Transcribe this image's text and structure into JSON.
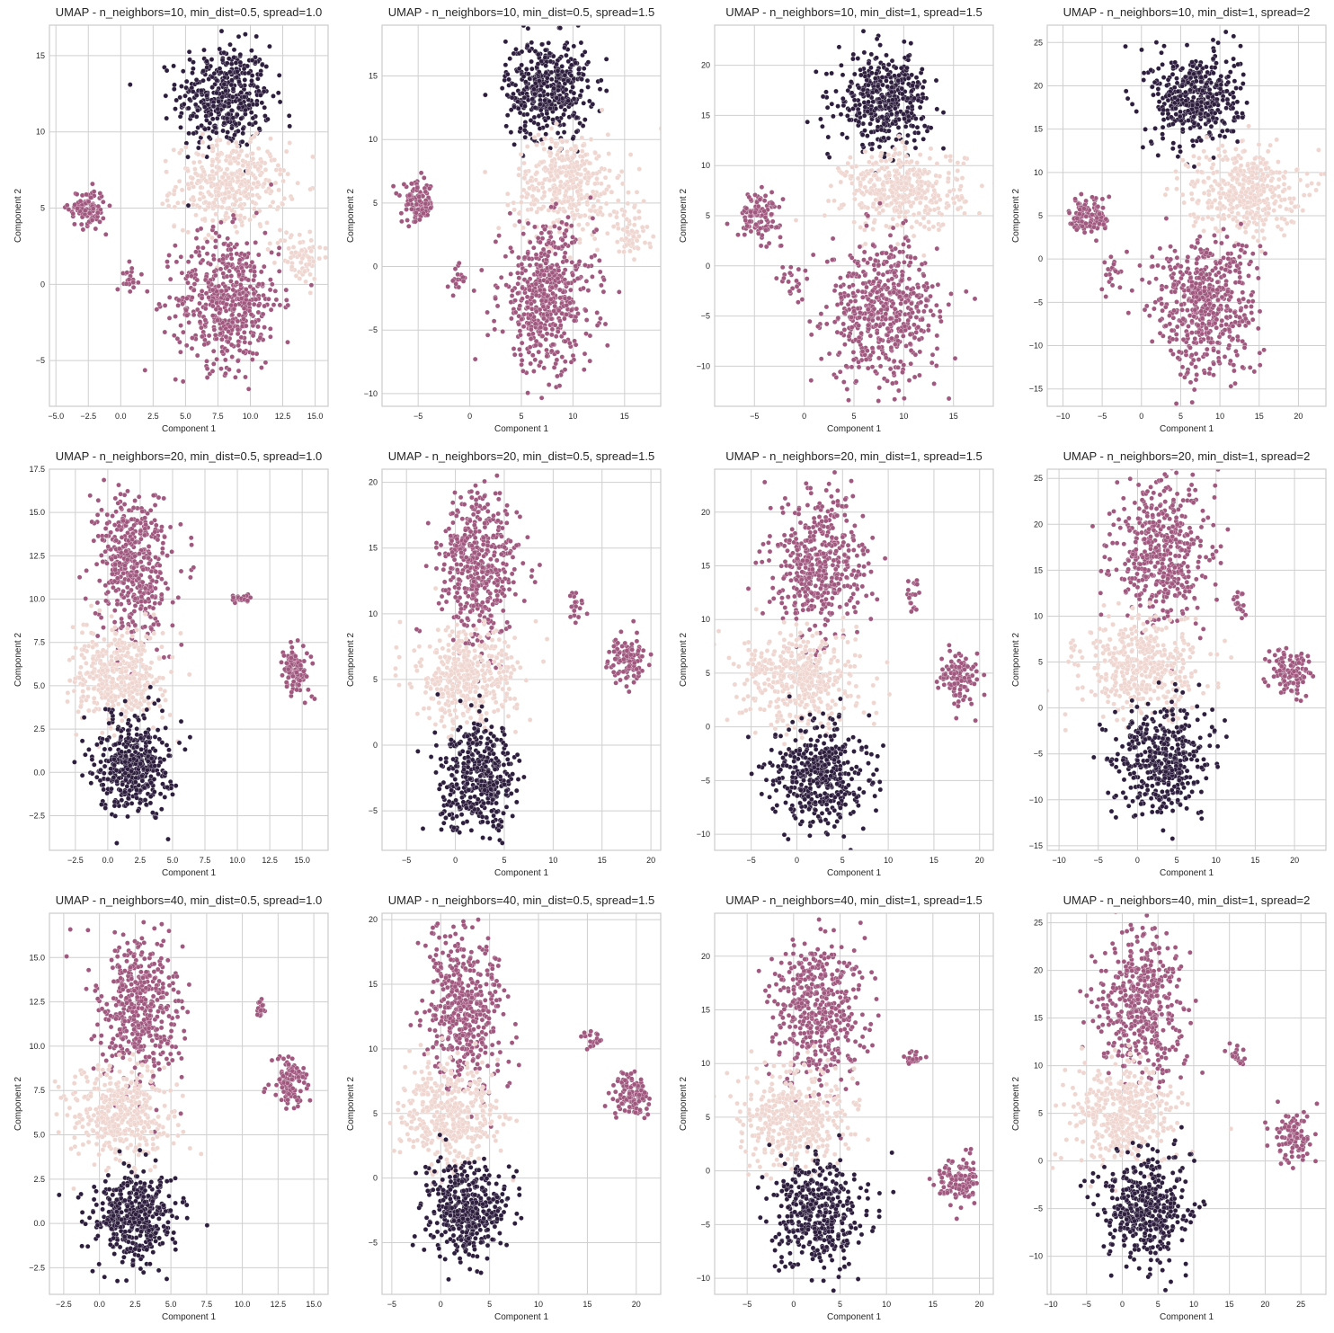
{
  "figure": {
    "title": ""
  },
  "palette": {
    "cluster_dark": "#2d1e3e",
    "cluster_mid": "#a0587f",
    "cluster_light": "#efd6d0",
    "grid": "#cfcfcf",
    "frame": "#cccccc"
  },
  "chart_data": [
    {
      "type": "scatter",
      "title": "UMAP - n_neighbors=10, min_dist=0.5, spread=1.0",
      "xlabel": "Component 1",
      "ylabel": "Component 2",
      "xlim": [
        -5.5,
        16
      ],
      "ylim": [
        -8,
        17
      ],
      "xticks": [
        -5,
        -2.5,
        0,
        2.5,
        5,
        7.5,
        10,
        12.5,
        15
      ],
      "xtick_labels": [
        "−5.0",
        "−2.5",
        "0.0",
        "2.5",
        "5.0",
        "7.5",
        "10.0",
        "12.5",
        "15.0"
      ],
      "yticks": [
        -5,
        0,
        5,
        10,
        15
      ],
      "ytick_labels": [
        "−5",
        "0",
        "5",
        "10",
        "15"
      ],
      "grid": true,
      "legend": "none",
      "clusters": [
        {
          "color": "dark",
          "cx": 8.0,
          "cy": 12.3,
          "sx": 1.8,
          "sy": 1.7,
          "n": 420
        },
        {
          "color": "light",
          "cx": 8.5,
          "cy": 6.5,
          "sx": 2.1,
          "sy": 1.4,
          "n": 380
        },
        {
          "color": "light",
          "cx": 13.8,
          "cy": 1.8,
          "sx": 0.9,
          "sy": 0.9,
          "n": 70
        },
        {
          "color": "mid",
          "cx": 8.3,
          "cy": -1.0,
          "sx": 2.0,
          "sy": 2.2,
          "n": 520
        },
        {
          "color": "mid",
          "cx": -2.6,
          "cy": 5.0,
          "sx": 0.7,
          "sy": 0.6,
          "n": 110
        },
        {
          "color": "mid",
          "cx": 0.8,
          "cy": 0.5,
          "sx": 0.35,
          "sy": 0.45,
          "n": 20
        }
      ]
    },
    {
      "type": "scatter",
      "title": "UMAP - n_neighbors=10, min_dist=0.5, spread=1.5",
      "xlabel": "Component 1",
      "ylabel": "Component 2",
      "xlim": [
        -8.5,
        18.5
      ],
      "ylim": [
        -11,
        19
      ],
      "xticks": [
        -5,
        0,
        5,
        10,
        15
      ],
      "xtick_labels": [
        "−5",
        "0",
        "5",
        "10",
        "15"
      ],
      "yticks": [
        -10,
        -5,
        0,
        5,
        10,
        15
      ],
      "ytick_labels": [
        "−10",
        "−5",
        "0",
        "5",
        "10",
        "15"
      ],
      "grid": true,
      "legend": "none",
      "clusters": [
        {
          "color": "dark",
          "cx": 7.5,
          "cy": 14.0,
          "sx": 2.0,
          "sy": 2.0,
          "n": 420
        },
        {
          "color": "light",
          "cx": 9.5,
          "cy": 6.5,
          "sx": 2.5,
          "sy": 2.0,
          "n": 380
        },
        {
          "color": "light",
          "cx": 15.5,
          "cy": 2.5,
          "sx": 1.0,
          "sy": 1.2,
          "n": 60
        },
        {
          "color": "mid",
          "cx": 7.5,
          "cy": -2.5,
          "sx": 2.3,
          "sy": 2.8,
          "n": 520
        },
        {
          "color": "mid",
          "cx": -5.0,
          "cy": 5.0,
          "sx": 0.8,
          "sy": 0.8,
          "n": 110
        },
        {
          "color": "mid",
          "cx": -1.2,
          "cy": -1.0,
          "sx": 0.4,
          "sy": 0.6,
          "n": 20
        }
      ]
    },
    {
      "type": "scatter",
      "title": "UMAP - n_neighbors=10, min_dist=1, spread=1.5",
      "xlabel": "Component 1",
      "ylabel": "Component 2",
      "xlim": [
        -9,
        19
      ],
      "ylim": [
        -14,
        24
      ],
      "xticks": [
        -5,
        0,
        5,
        10,
        15
      ],
      "xtick_labels": [
        "−5",
        "0",
        "5",
        "10",
        "15"
      ],
      "yticks": [
        -10,
        -5,
        0,
        5,
        10,
        15,
        20
      ],
      "ytick_labels": [
        "−10",
        "−5",
        "0",
        "5",
        "10",
        "15",
        "20"
      ],
      "grid": true,
      "legend": "none",
      "clusters": [
        {
          "color": "dark",
          "cx": 8.0,
          "cy": 16.5,
          "sx": 2.3,
          "sy": 2.3,
          "n": 420
        },
        {
          "color": "light",
          "cx": 10.0,
          "cy": 7.5,
          "sx": 3.0,
          "sy": 2.0,
          "n": 400
        },
        {
          "color": "mid",
          "cx": 8.0,
          "cy": -4.5,
          "sx": 2.8,
          "sy": 3.5,
          "n": 540
        },
        {
          "color": "mid",
          "cx": -4.5,
          "cy": 5.0,
          "sx": 1.1,
          "sy": 1.1,
          "n": 110
        },
        {
          "color": "mid",
          "cx": -1.2,
          "cy": -1.5,
          "sx": 0.6,
          "sy": 0.9,
          "n": 20
        }
      ]
    },
    {
      "type": "scatter",
      "title": "UMAP - n_neighbors=10, min_dist=1, spread=2",
      "xlabel": "Component 1",
      "ylabel": "Component 2",
      "xlim": [
        -12,
        23.5
      ],
      "ylim": [
        -17,
        27
      ],
      "xticks": [
        -10,
        -5,
        0,
        5,
        10,
        15,
        20
      ],
      "xtick_labels": [
        "−10",
        "−5",
        "0",
        "5",
        "10",
        "15",
        "20"
      ],
      "yticks": [
        -15,
        -10,
        -5,
        0,
        5,
        10,
        15,
        20,
        25
      ],
      "ytick_labels": [
        "−15",
        "−10",
        "−5",
        "0",
        "5",
        "10",
        "15",
        "20",
        "25"
      ],
      "grid": true,
      "legend": "none",
      "clusters": [
        {
          "color": "dark",
          "cx": 7.0,
          "cy": 18.5,
          "sx": 2.8,
          "sy": 2.8,
          "n": 420
        },
        {
          "color": "light",
          "cx": 13.0,
          "cy": 8.0,
          "sx": 3.5,
          "sy": 2.5,
          "n": 400
        },
        {
          "color": "mid",
          "cx": 8.0,
          "cy": -5.5,
          "sx": 3.3,
          "sy": 4.0,
          "n": 540
        },
        {
          "color": "mid",
          "cx": -6.5,
          "cy": 5.0,
          "sx": 1.3,
          "sy": 1.3,
          "n": 110
        },
        {
          "color": "mid",
          "cx": -3.5,
          "cy": -1.5,
          "sx": 0.7,
          "sy": 1.1,
          "n": 20
        }
      ]
    },
    {
      "type": "scatter",
      "title": "UMAP - n_neighbors=20, min_dist=0.5, spread=1.0",
      "xlabel": "Component 1",
      "ylabel": "Component 2",
      "xlim": [
        -4.5,
        17
      ],
      "ylim": [
        -4.5,
        17.5
      ],
      "xticks": [
        -2.5,
        0,
        2.5,
        5,
        7.5,
        10,
        12.5,
        15
      ],
      "xtick_labels": [
        "−2.5",
        "0.0",
        "2.5",
        "5.0",
        "7.5",
        "10.0",
        "12.5",
        "15.0"
      ],
      "yticks": [
        -2.5,
        0,
        2.5,
        5,
        7.5,
        10,
        12.5,
        15,
        17.5
      ],
      "ytick_labels": [
        "−2.5",
        "0.0",
        "2.5",
        "5.0",
        "7.5",
        "10.0",
        "12.5",
        "15.0",
        "17.5"
      ],
      "grid": true,
      "legend": "none",
      "clusters": [
        {
          "color": "mid",
          "cx": 2.0,
          "cy": 12.0,
          "sx": 1.4,
          "sy": 2.2,
          "n": 460
        },
        {
          "color": "light",
          "cx": 0.8,
          "cy": 5.5,
          "sx": 1.7,
          "sy": 1.3,
          "n": 420
        },
        {
          "color": "dark",
          "cx": 2.0,
          "cy": 0.5,
          "sx": 1.4,
          "sy": 1.4,
          "n": 420
        },
        {
          "color": "mid",
          "cx": 14.5,
          "cy": 6.0,
          "sx": 0.6,
          "sy": 0.7,
          "n": 110
        },
        {
          "color": "mid",
          "cx": 10.2,
          "cy": 10.0,
          "sx": 0.4,
          "sy": 0.2,
          "n": 18
        }
      ]
    },
    {
      "type": "scatter",
      "title": "UMAP - n_neighbors=20, min_dist=0.5, spread=1.5",
      "xlabel": "Component 1",
      "ylabel": "Component 2",
      "xlim": [
        -7.5,
        21
      ],
      "ylim": [
        -8,
        21
      ],
      "xticks": [
        -5,
        0,
        5,
        10,
        15,
        20
      ],
      "xtick_labels": [
        "−5",
        "0",
        "5",
        "10",
        "15",
        "20"
      ],
      "yticks": [
        -5,
        0,
        5,
        10,
        15,
        20
      ],
      "ytick_labels": [
        "−5",
        "0",
        "5",
        "10",
        "15",
        "20"
      ],
      "grid": true,
      "legend": "none",
      "clusters": [
        {
          "color": "mid",
          "cx": 2.5,
          "cy": 13.5,
          "sx": 2.0,
          "sy": 3.0,
          "n": 460
        },
        {
          "color": "light",
          "cx": 1.0,
          "cy": 5.0,
          "sx": 2.6,
          "sy": 1.8,
          "n": 420
        },
        {
          "color": "dark",
          "cx": 2.5,
          "cy": -2.5,
          "sx": 2.0,
          "sy": 2.0,
          "n": 420
        },
        {
          "color": "mid",
          "cx": 17.5,
          "cy": 6.5,
          "sx": 0.9,
          "sy": 0.9,
          "n": 110
        },
        {
          "color": "mid",
          "cx": 12.5,
          "cy": 10.5,
          "sx": 0.4,
          "sy": 0.6,
          "n": 18
        }
      ]
    },
    {
      "type": "scatter",
      "title": "UMAP - n_neighbors=20, min_dist=1, spread=1.5",
      "xlabel": "Component 1",
      "ylabel": "Component 2",
      "xlim": [
        -9,
        21.5
      ],
      "ylim": [
        -11.5,
        24
      ],
      "xticks": [
        -5,
        0,
        5,
        10,
        15,
        20
      ],
      "xtick_labels": [
        "−5",
        "0",
        "5",
        "10",
        "15",
        "20"
      ],
      "yticks": [
        -10,
        -5,
        0,
        5,
        10,
        15,
        20
      ],
      "ytick_labels": [
        "−10",
        "−5",
        "0",
        "5",
        "10",
        "15",
        "20"
      ],
      "grid": true,
      "legend": "none",
      "clusters": [
        {
          "color": "mid",
          "cx": 2.5,
          "cy": 15.0,
          "sx": 2.5,
          "sy": 3.3,
          "n": 460
        },
        {
          "color": "light",
          "cx": 0.5,
          "cy": 4.5,
          "sx": 3.2,
          "sy": 2.2,
          "n": 420
        },
        {
          "color": "dark",
          "cx": 2.5,
          "cy": -4.5,
          "sx": 2.5,
          "sy": 2.5,
          "n": 420
        },
        {
          "color": "mid",
          "cx": 17.8,
          "cy": 4.5,
          "sx": 1.1,
          "sy": 1.3,
          "n": 110
        },
        {
          "color": "mid",
          "cx": 12.8,
          "cy": 12.0,
          "sx": 0.5,
          "sy": 1.0,
          "n": 18
        }
      ]
    },
    {
      "type": "scatter",
      "title": "UMAP - n_neighbors=20, min_dist=1, spread=2",
      "xlabel": "Component 1",
      "ylabel": "Component 2",
      "xlim": [
        -11.5,
        24
      ],
      "ylim": [
        -15.5,
        26
      ],
      "xticks": [
        -10,
        -5,
        0,
        5,
        10,
        15,
        20
      ],
      "xtick_labels": [
        "−10",
        "−5",
        "0",
        "5",
        "10",
        "15",
        "20"
      ],
      "yticks": [
        -15,
        -10,
        -5,
        0,
        5,
        10,
        15,
        20,
        25
      ],
      "ytick_labels": [
        "−15",
        "−10",
        "−5",
        "0",
        "5",
        "10",
        "15",
        "20",
        "25"
      ],
      "grid": true,
      "legend": "none",
      "clusters": [
        {
          "color": "mid",
          "cx": 3.0,
          "cy": 17.0,
          "sx": 3.0,
          "sy": 3.8,
          "n": 460
        },
        {
          "color": "light",
          "cx": 0.5,
          "cy": 4.5,
          "sx": 3.8,
          "sy": 2.5,
          "n": 420
        },
        {
          "color": "dark",
          "cx": 3.0,
          "cy": -5.5,
          "sx": 3.0,
          "sy": 3.0,
          "n": 420
        },
        {
          "color": "mid",
          "cx": 19.5,
          "cy": 4.0,
          "sx": 1.3,
          "sy": 1.3,
          "n": 110
        },
        {
          "color": "mid",
          "cx": 13.0,
          "cy": 11.5,
          "sx": 0.5,
          "sy": 0.8,
          "n": 18
        }
      ]
    },
    {
      "type": "scatter",
      "title": "UMAP - n_neighbors=40, min_dist=0.5, spread=1.0",
      "xlabel": "Component 1",
      "ylabel": "Component 2",
      "xlim": [
        -3.5,
        16
      ],
      "ylim": [
        -4,
        17.5
      ],
      "xticks": [
        -2.5,
        0,
        2.5,
        5,
        7.5,
        10,
        12.5,
        15
      ],
      "xtick_labels": [
        "−2.5",
        "0.0",
        "2.5",
        "5.0",
        "7.5",
        "10.0",
        "12.5",
        "15.0"
      ],
      "yticks": [
        -2.5,
        0,
        2.5,
        5,
        7.5,
        10,
        12.5,
        15
      ],
      "ytick_labels": [
        "−2.5",
        "0.0",
        "2.5",
        "5.0",
        "7.5",
        "10.0",
        "12.5",
        "15.0"
      ],
      "grid": true,
      "legend": "none",
      "clusters": [
        {
          "color": "mid",
          "cx": 2.8,
          "cy": 12.0,
          "sx": 1.4,
          "sy": 2.2,
          "n": 460
        },
        {
          "color": "light",
          "cx": 1.5,
          "cy": 6.0,
          "sx": 1.8,
          "sy": 1.4,
          "n": 420
        },
        {
          "color": "dark",
          "cx": 2.5,
          "cy": 0.3,
          "sx": 1.5,
          "sy": 1.3,
          "n": 420
        },
        {
          "color": "mid",
          "cx": 13.3,
          "cy": 8.0,
          "sx": 0.6,
          "sy": 0.7,
          "n": 110
        },
        {
          "color": "mid",
          "cx": 11.3,
          "cy": 12.2,
          "sx": 0.2,
          "sy": 0.4,
          "n": 18
        }
      ]
    },
    {
      "type": "scatter",
      "title": "UMAP - n_neighbors=40, min_dist=0.5, spread=1.5",
      "xlabel": "Component 1",
      "ylabel": "Component 2",
      "xlim": [
        -6,
        22.5
      ],
      "ylim": [
        -9,
        20.5
      ],
      "xticks": [
        -5,
        0,
        5,
        10,
        15,
        20
      ],
      "xtick_labels": [
        "−5",
        "0",
        "5",
        "10",
        "15",
        "20"
      ],
      "yticks": [
        -5,
        0,
        5,
        10,
        15,
        20
      ],
      "ytick_labels": [
        "−5",
        "0",
        "5",
        "10",
        "15",
        "20"
      ],
      "grid": true,
      "legend": "none",
      "clusters": [
        {
          "color": "mid",
          "cx": 2.5,
          "cy": 13.0,
          "sx": 2.0,
          "sy": 3.0,
          "n": 460
        },
        {
          "color": "light",
          "cx": 1.0,
          "cy": 5.0,
          "sx": 2.6,
          "sy": 1.9,
          "n": 420
        },
        {
          "color": "dark",
          "cx": 2.5,
          "cy": -2.5,
          "sx": 2.0,
          "sy": 1.8,
          "n": 420
        },
        {
          "color": "mid",
          "cx": 19.5,
          "cy": 6.5,
          "sx": 1.0,
          "sy": 0.9,
          "n": 110
        },
        {
          "color": "mid",
          "cx": 15.5,
          "cy": 10.5,
          "sx": 0.6,
          "sy": 0.5,
          "n": 18
        }
      ]
    },
    {
      "type": "scatter",
      "title": "UMAP - n_neighbors=40, min_dist=1, spread=1.5",
      "xlabel": "Component 1",
      "ylabel": "Component 2",
      "xlim": [
        -8.5,
        21.5
      ],
      "ylim": [
        -11.5,
        24
      ],
      "xticks": [
        -5,
        0,
        5,
        10,
        15,
        20
      ],
      "xtick_labels": [
        "−5",
        "0",
        "5",
        "10",
        "15",
        "20"
      ],
      "yticks": [
        -10,
        -5,
        0,
        5,
        10,
        15,
        20
      ],
      "ytick_labels": [
        "−10",
        "−5",
        "0",
        "5",
        "10",
        "15",
        "20"
      ],
      "grid": true,
      "legend": "none",
      "clusters": [
        {
          "color": "mid",
          "cx": 2.5,
          "cy": 15.0,
          "sx": 2.5,
          "sy": 3.3,
          "n": 460
        },
        {
          "color": "light",
          "cx": 0.5,
          "cy": 5.0,
          "sx": 3.0,
          "sy": 2.2,
          "n": 420
        },
        {
          "color": "dark",
          "cx": 2.5,
          "cy": -4.0,
          "sx": 2.4,
          "sy": 2.4,
          "n": 420
        },
        {
          "color": "mid",
          "cx": 17.5,
          "cy": -1.0,
          "sx": 1.2,
          "sy": 1.2,
          "n": 110
        },
        {
          "color": "mid",
          "cx": 13.0,
          "cy": 10.5,
          "sx": 0.5,
          "sy": 0.4,
          "n": 18
        }
      ]
    },
    {
      "type": "scatter",
      "title": "UMAP - n_neighbors=40, min_dist=1, spread=2",
      "xlabel": "Component 1",
      "ylabel": "Component 2",
      "xlim": [
        -10.5,
        28.5
      ],
      "ylim": [
        -14,
        26
      ],
      "xticks": [
        -10,
        -5,
        0,
        5,
        10,
        15,
        20,
        25
      ],
      "xtick_labels": [
        "−10",
        "−5",
        "0",
        "5",
        "10",
        "15",
        "20",
        "25"
      ],
      "yticks": [
        -10,
        -5,
        0,
        5,
        10,
        15,
        20,
        25
      ],
      "ytick_labels": [
        "−10",
        "−5",
        "0",
        "5",
        "10",
        "15",
        "20",
        "25"
      ],
      "grid": true,
      "legend": "none",
      "clusters": [
        {
          "color": "mid",
          "cx": 2.5,
          "cy": 16.5,
          "sx": 3.0,
          "sy": 3.8,
          "n": 460
        },
        {
          "color": "light",
          "cx": 0.0,
          "cy": 5.0,
          "sx": 3.6,
          "sy": 2.6,
          "n": 420
        },
        {
          "color": "dark",
          "cx": 3.0,
          "cy": -5.0,
          "sx": 3.0,
          "sy": 3.0,
          "n": 420
        },
        {
          "color": "mid",
          "cx": 24.0,
          "cy": 2.5,
          "sx": 1.3,
          "sy": 1.4,
          "n": 110
        },
        {
          "color": "mid",
          "cx": 16.0,
          "cy": 11.0,
          "sx": 0.6,
          "sy": 0.5,
          "n": 18
        }
      ]
    }
  ]
}
